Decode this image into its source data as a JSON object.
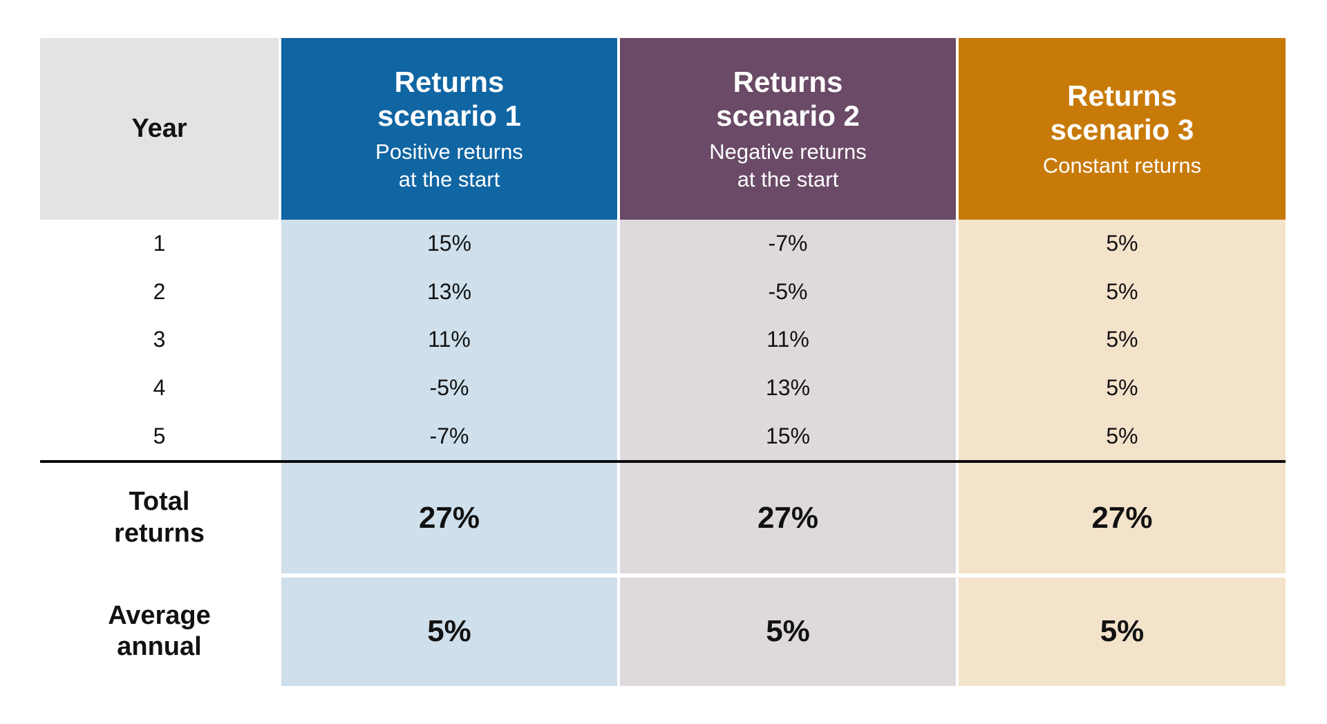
{
  "table": {
    "header": {
      "year_label": "Year",
      "scenarios": [
        {
          "title": "Returns\nscenario 1",
          "subtitle": "Positive returns\nat the start",
          "header_bg": "#1065a3",
          "body_bg": "#cfe0ec"
        },
        {
          "title": "Returns\nscenario 2",
          "subtitle": "Negative returns\nat the start",
          "header_bg": "#6a4a66",
          "body_bg": "#ded9dd"
        },
        {
          "title": "Returns\nscenario 3",
          "subtitle": "Constant returns",
          "header_bg": "#c87a08",
          "body_bg": "#f4e3cb"
        }
      ]
    },
    "rows": [
      {
        "year": "1",
        "s1": "15%",
        "s2": "-7%",
        "s3": "5%"
      },
      {
        "year": "2",
        "s1": "13%",
        "s2": "-5%",
        "s3": "5%"
      },
      {
        "year": "3",
        "s1": "11%",
        "s2": "11%",
        "s3": "5%"
      },
      {
        "year": "4",
        "s1": "-5%",
        "s2": "13%",
        "s3": "5%"
      },
      {
        "year": "5",
        "s1": "-7%",
        "s2": "15%",
        "s3": "5%"
      }
    ],
    "total": {
      "label": "Total\nreturns",
      "s1": "27%",
      "s2": "27%",
      "s3": "27%"
    },
    "average": {
      "label": "Average\nannual",
      "s1": "5%",
      "s2": "5%",
      "s3": "5%"
    },
    "year_header_bg": "#e4e3e4",
    "text_color": "#111111",
    "divider_color": "#0a0a0a"
  },
  "chart_data": {
    "type": "table",
    "columns": [
      {
        "header": "Year",
        "subheader": ""
      },
      {
        "header": "Returns scenario 1",
        "subheader": "Positive returns at the start"
      },
      {
        "header": "Returns scenario 2",
        "subheader": "Negative returns at the start"
      },
      {
        "header": "Returns scenario 3",
        "subheader": "Constant returns"
      }
    ],
    "rows": [
      [
        "1",
        "15%",
        "-7%",
        "5%"
      ],
      [
        "2",
        "13%",
        "-5%",
        "5%"
      ],
      [
        "3",
        "11%",
        "11%",
        "5%"
      ],
      [
        "4",
        "-5%",
        "13%",
        "5%"
      ],
      [
        "5",
        "-7%",
        "15%",
        "5%"
      ]
    ],
    "summary_rows": [
      {
        "label": "Total returns",
        "values": [
          "27%",
          "27%",
          "27%"
        ]
      },
      {
        "label": "Average annual",
        "values": [
          "5%",
          "5%",
          "5%"
        ]
      }
    ],
    "column_colors": {
      "scenario1_header": "#1065a3",
      "scenario2_header": "#6a4a66",
      "scenario3_header": "#c87a08",
      "scenario1_body": "#cfe0ec",
      "scenario2_body": "#ded9dd",
      "scenario3_body": "#f4e3cb",
      "year_header": "#e4e3e4"
    }
  }
}
